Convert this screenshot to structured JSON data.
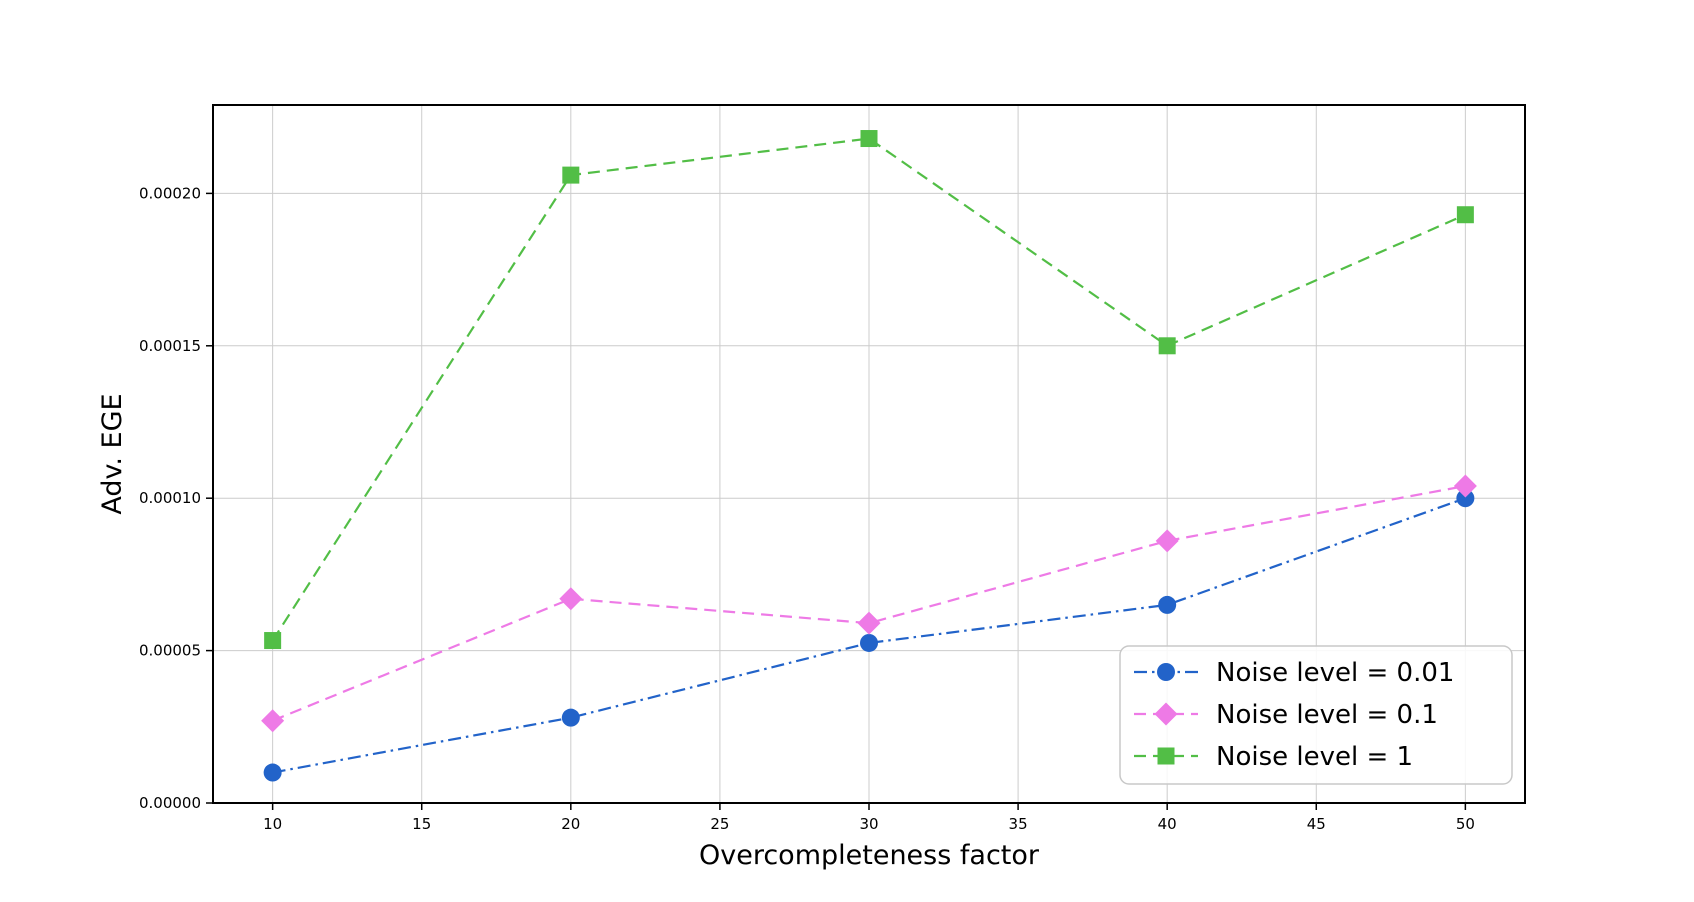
{
  "chart_data": {
    "type": "line",
    "title": "",
    "xlabel": "Overcompleteness factor",
    "ylabel": "Adv. EGE",
    "x": [
      10,
      20,
      30,
      40,
      50
    ],
    "series": [
      {
        "name": "Noise level = 0.01",
        "color": "#2263c9",
        "marker": "circle",
        "linestyle": "dashdot",
        "values": [
          1e-05,
          2.8e-05,
          5.25e-05,
          6.5e-05,
          0.0001
        ]
      },
      {
        "name": "Noise level = 0.1",
        "color": "#ee7ae6",
        "marker": "diamond",
        "linestyle": "dashed",
        "values": [
          2.7e-05,
          6.7e-05,
          5.9e-05,
          8.6e-05,
          0.000104
        ]
      },
      {
        "name": "Noise level = 1",
        "color": "#52be46",
        "marker": "square",
        "linestyle": "dashed",
        "values": [
          5.33e-05,
          0.000206,
          0.000218,
          0.00015,
          0.000193
        ]
      }
    ],
    "xticks": [
      10,
      15,
      20,
      25,
      30,
      35,
      40,
      45,
      50
    ],
    "yticks": [
      0,
      5e-05,
      0.0001,
      0.00015,
      0.0002
    ],
    "ytick_labels": [
      "0.00000",
      "0.00005",
      "0.00010",
      "0.00015",
      "0.00020"
    ],
    "xlim": [
      8,
      52
    ],
    "ylim": [
      0,
      0.000229
    ],
    "grid": true,
    "grid_color": "#cccccc",
    "spine_color": "#000000",
    "legend_position": "lower right"
  }
}
